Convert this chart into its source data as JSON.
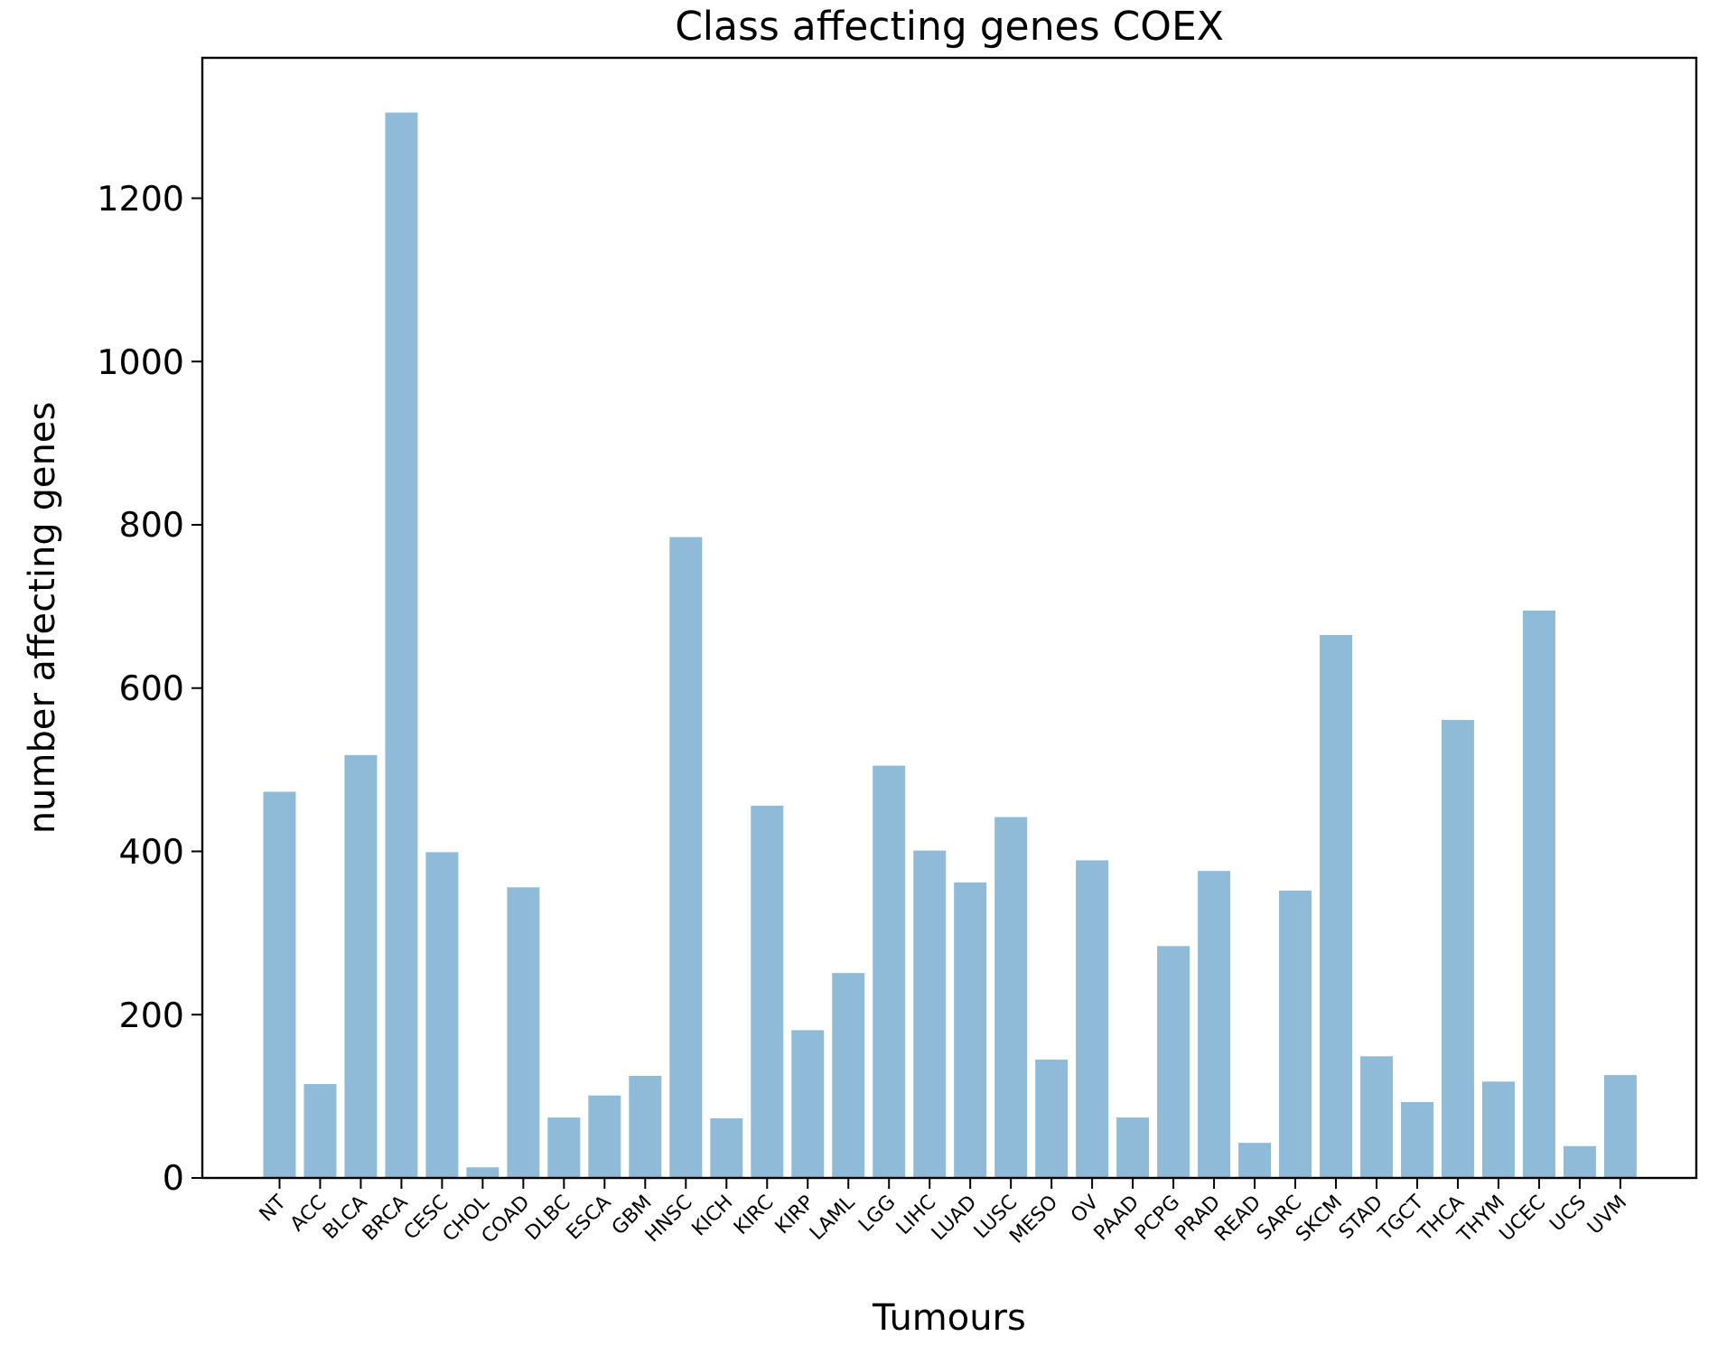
{
  "chart_data": {
    "type": "bar",
    "title": "Class affecting genes COEX",
    "xlabel": "Tumours",
    "ylabel": "number affecting genes",
    "categories": [
      "NT",
      "ACC",
      "BLCA",
      "BRCA",
      "CESC",
      "CHOL",
      "COAD",
      "DLBC",
      "ESCA",
      "GBM",
      "HNSC",
      "KICH",
      "KIRC",
      "KIRP",
      "LAML",
      "LGG",
      "LIHC",
      "LUAD",
      "LUSC",
      "MESO",
      "OV",
      "PAAD",
      "PCPG",
      "PRAD",
      "READ",
      "SARC",
      "SKCM",
      "STAD",
      "TGCT",
      "THCA",
      "THYM",
      "UCEC",
      "UCS",
      "UVM"
    ],
    "values": [
      473,
      115,
      518,
      1305,
      399,
      13,
      356,
      74,
      101,
      125,
      785,
      73,
      456,
      181,
      251,
      505,
      401,
      362,
      442,
      145,
      389,
      74,
      284,
      376,
      43,
      352,
      665,
      149,
      93,
      561,
      118,
      695,
      39,
      126
    ],
    "color": "#8fbbd9",
    "ylim": [
      0,
      1372
    ],
    "yticks": [
      0,
      200,
      400,
      600,
      800,
      1000,
      1200
    ]
  }
}
